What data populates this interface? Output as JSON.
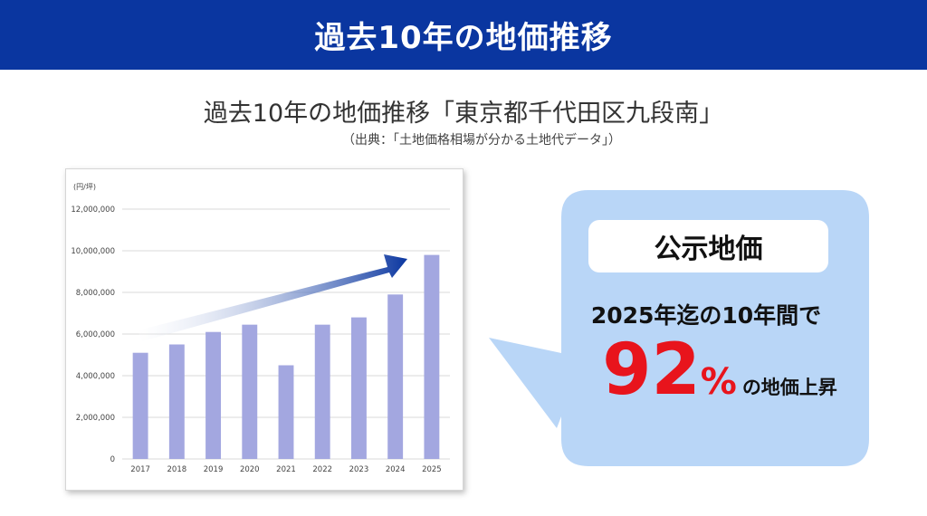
{
  "header": {
    "title": "過去10年の地価推移"
  },
  "subtitle": "過去10年の地価推移「東京都千代田区九段南」",
  "source": "（出典：「土地価格相場が分かる土地代データ」）",
  "callout": {
    "label": "公示地価",
    "period": "2025年迄の10年間で",
    "percent": "92",
    "percent_unit": "%",
    "suffix": "の地価上昇",
    "bubble_color": "#b9d6f7"
  },
  "chart_data": {
    "type": "bar",
    "unit_label": "(円/坪)",
    "categories": [
      "2017",
      "2018",
      "2019",
      "2020",
      "2021",
      "2022",
      "2023",
      "2024",
      "2025"
    ],
    "values": [
      5100000,
      5500000,
      6100000,
      6450000,
      4500000,
      6450000,
      6800000,
      7900000,
      9800000
    ],
    "y_ticks": [
      "0",
      "2,000,000",
      "4,000,000",
      "6,000,000",
      "8,000,000",
      "10,000,000",
      "12,000,000"
    ],
    "ylim": [
      0,
      12000000
    ],
    "grid": true,
    "bar_color": "#a3a7e0",
    "trend_arrow_color": "#0a36a0"
  }
}
